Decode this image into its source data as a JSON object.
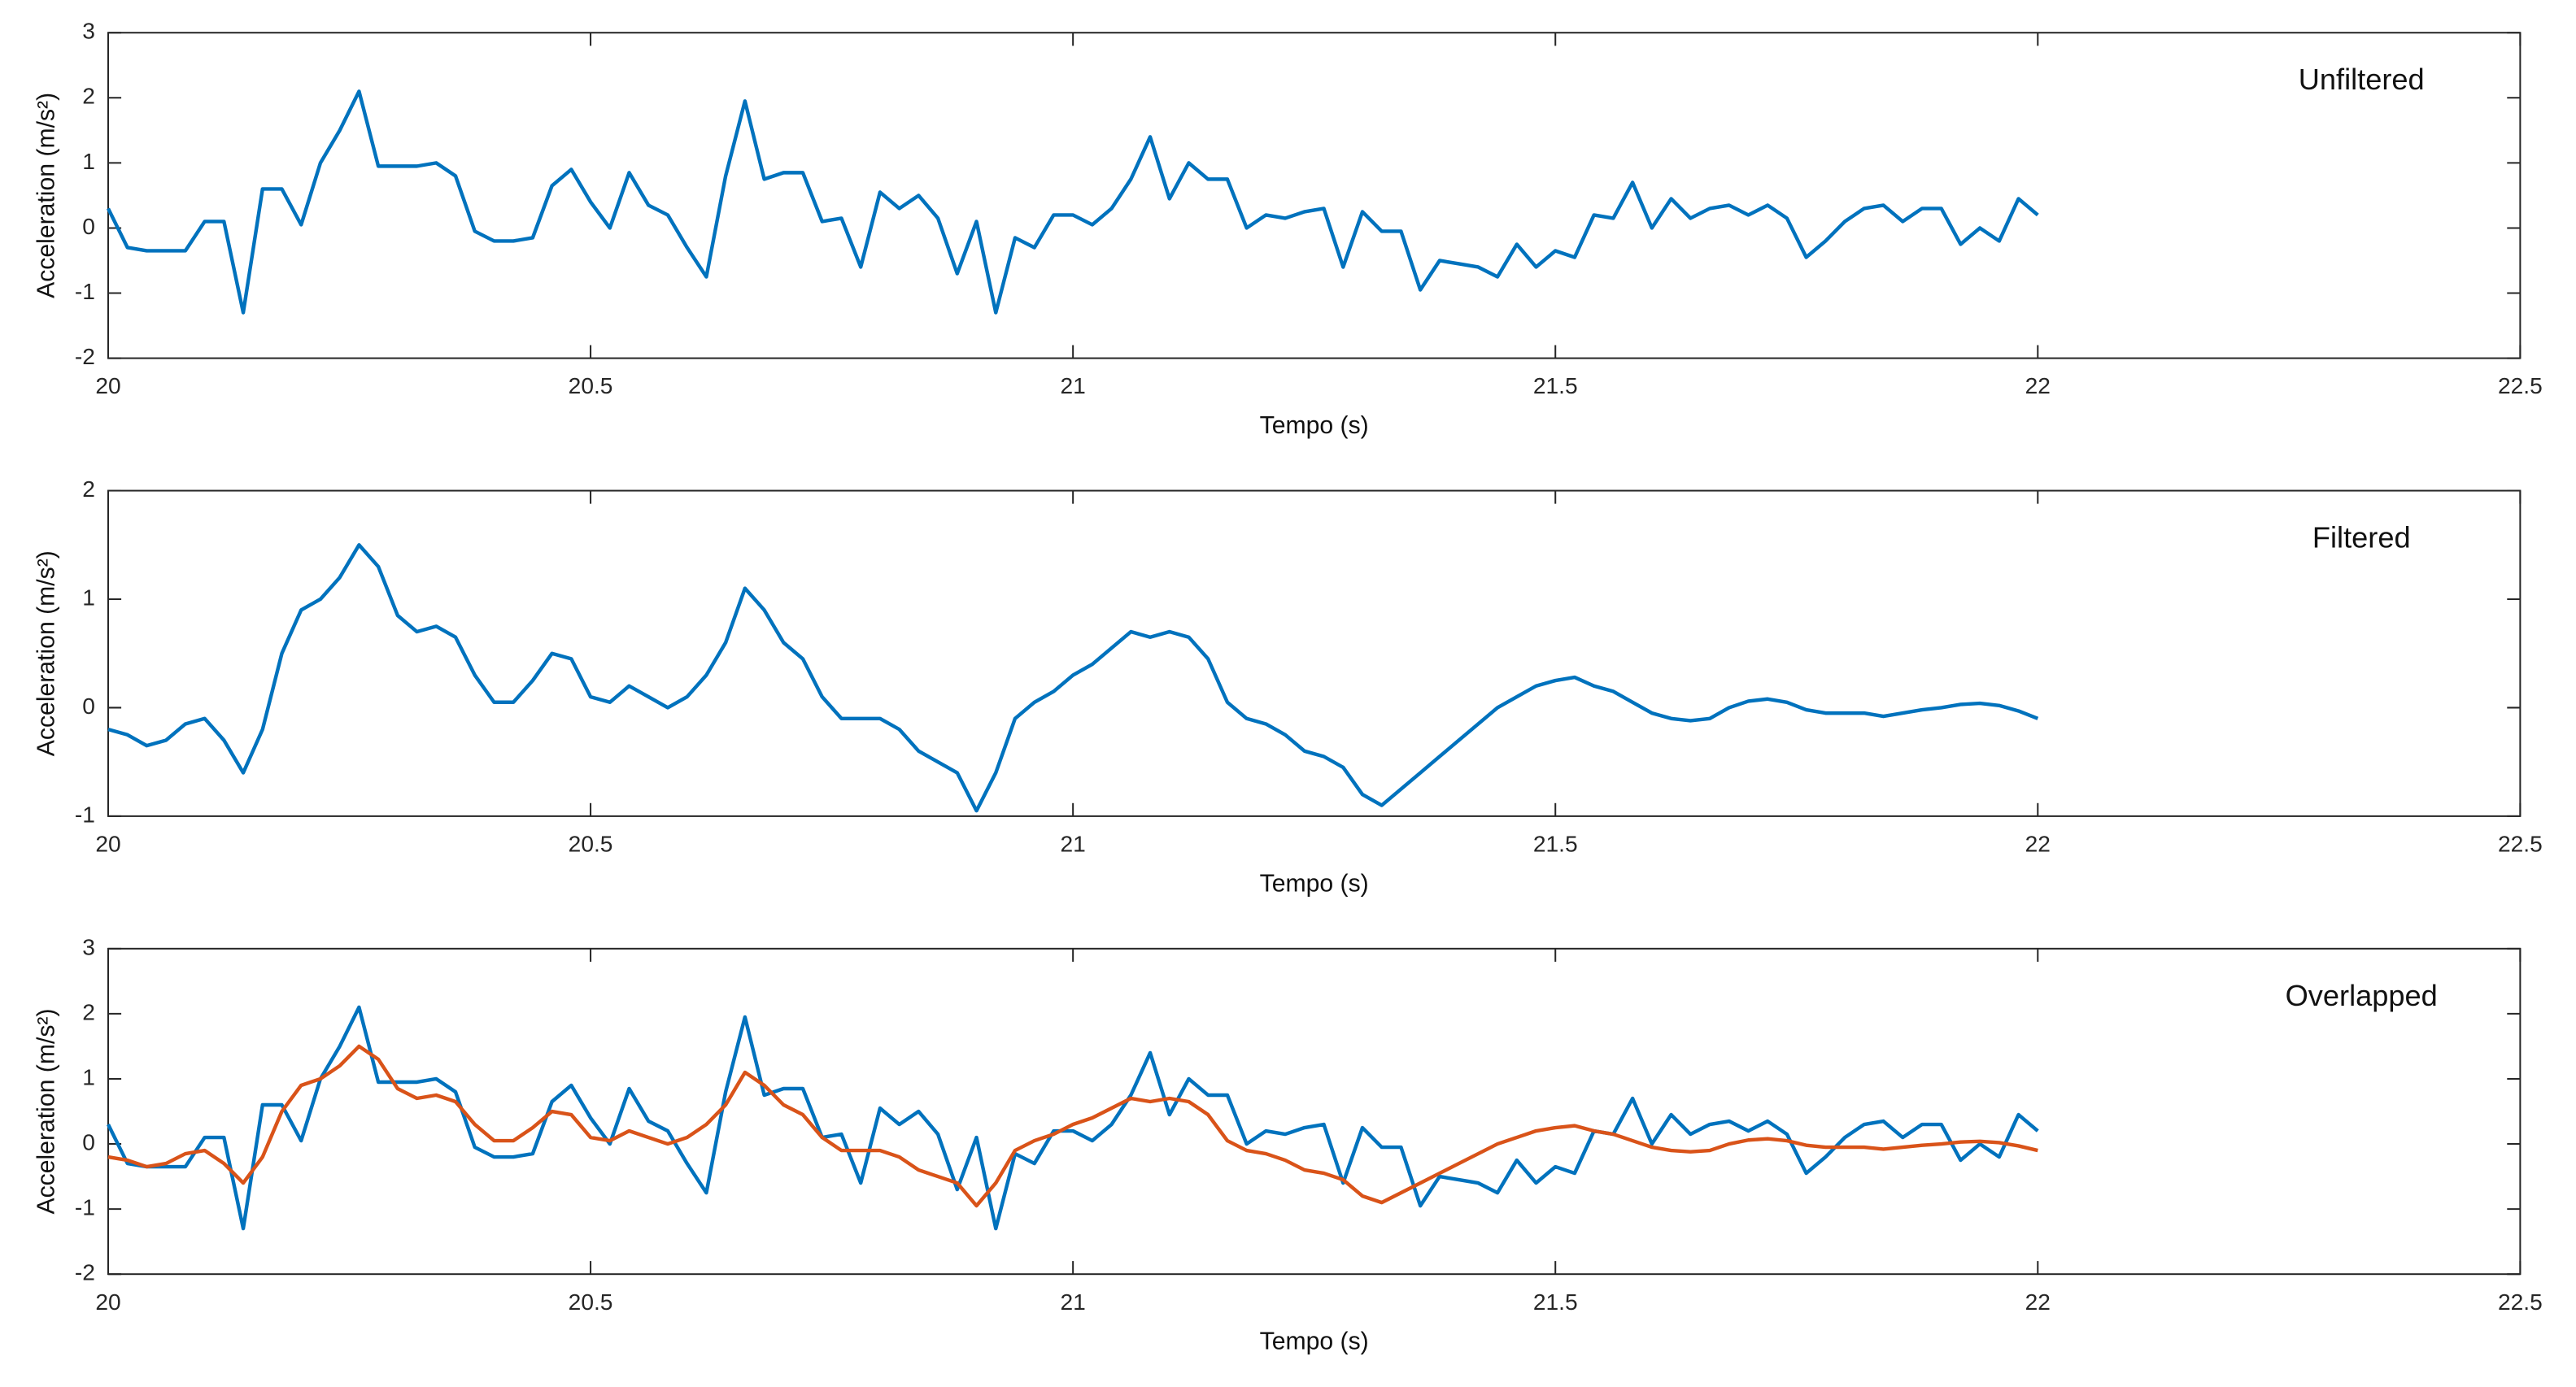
{
  "chart_data": [
    {
      "type": "line",
      "title": "Unfiltered",
      "xlabel": "Tempo (s)",
      "ylabel": "Acceleration (m/s²)",
      "xlim": [
        20,
        22.5
      ],
      "xticks": [
        20,
        20.5,
        21,
        21.5,
        22,
        22.5
      ],
      "ylim": [
        -2,
        3
      ],
      "yticks": [
        -2,
        -1,
        0,
        1,
        2,
        3
      ],
      "x": [
        20,
        20.02,
        20.04,
        20.06,
        20.08,
        20.1,
        20.12,
        20.14,
        20.16,
        20.18,
        20.2,
        20.22,
        20.24,
        20.26,
        20.28,
        20.3,
        20.32,
        20.34,
        20.36,
        20.38,
        20.4,
        20.42,
        20.44,
        20.46,
        20.48,
        20.5,
        20.52,
        20.54,
        20.56,
        20.58,
        20.6,
        20.62,
        20.64,
        20.66,
        20.68,
        20.7,
        20.72,
        20.74,
        20.76,
        20.78,
        20.8,
        20.82,
        20.84,
        20.86,
        20.88,
        20.9,
        20.92,
        20.94,
        20.96,
        20.98,
        21,
        21.02,
        21.04,
        21.06,
        21.08,
        21.1,
        21.12,
        21.14,
        21.16,
        21.18,
        21.2,
        21.22,
        21.24,
        21.26,
        21.28,
        21.3,
        21.32,
        21.34,
        21.36,
        21.38,
        21.4,
        21.42,
        21.44,
        21.46,
        21.48,
        21.5,
        21.52,
        21.54,
        21.56,
        21.58,
        21.6,
        21.62,
        21.64,
        21.66,
        21.68,
        21.7,
        21.72,
        21.74,
        21.76,
        21.78,
        21.8,
        21.82,
        21.84,
        21.86,
        21.88,
        21.9,
        21.92,
        21.94,
        21.96,
        21.98,
        22
      ],
      "series": [
        {
          "color": "#0072bd",
          "values": [
            0.3,
            -0.3,
            -0.35,
            -0.35,
            -0.35,
            0.1,
            0.1,
            -1.3,
            0.6,
            0.6,
            0.05,
            1.0,
            1.5,
            2.1,
            0.95,
            0.95,
            0.95,
            1.0,
            0.8,
            -0.05,
            -0.2,
            -0.2,
            -0.15,
            0.65,
            0.9,
            0.4,
            0.0,
            0.85,
            0.35,
            0.2,
            -0.3,
            -0.75,
            0.8,
            1.95,
            0.75,
            0.85,
            0.85,
            0.1,
            0.15,
            -0.6,
            0.55,
            0.3,
            0.5,
            0.15,
            -0.7,
            0.1,
            -1.3,
            -0.15,
            -0.3,
            0.2,
            0.2,
            0.05,
            0.3,
            0.75,
            1.4,
            0.45,
            1.0,
            0.75,
            0.75,
            0.0,
            0.2,
            0.15,
            0.25,
            0.3,
            -0.6,
            0.25,
            -0.05,
            -0.05,
            -0.95,
            -0.5,
            -0.55,
            -0.6,
            -0.75,
            -0.25,
            -0.6,
            -0.35,
            -0.45,
            0.2,
            0.15,
            0.7,
            0.0,
            0.45,
            0.15,
            0.3,
            0.35,
            0.2,
            0.35,
            0.15,
            -0.45,
            -0.2,
            0.1,
            0.3,
            0.35,
            0.1,
            0.3,
            0.3,
            -0.25,
            0.0,
            -0.2,
            0.45,
            0.2
          ]
        }
      ]
    },
    {
      "type": "line",
      "title": "Filtered",
      "xlabel": "Tempo (s)",
      "ylabel": "Acceleration (m/s²)",
      "xlim": [
        20,
        22.5
      ],
      "xticks": [
        20,
        20.5,
        21,
        21.5,
        22,
        22.5
      ],
      "ylim": [
        -1,
        2
      ],
      "yticks": [
        -1,
        0,
        1,
        2
      ],
      "x": [
        20,
        20.02,
        20.04,
        20.06,
        20.08,
        20.1,
        20.12,
        20.14,
        20.16,
        20.18,
        20.2,
        20.22,
        20.24,
        20.26,
        20.28,
        20.3,
        20.32,
        20.34,
        20.36,
        20.38,
        20.4,
        20.42,
        20.44,
        20.46,
        20.48,
        20.5,
        20.52,
        20.54,
        20.56,
        20.58,
        20.6,
        20.62,
        20.64,
        20.66,
        20.68,
        20.7,
        20.72,
        20.74,
        20.76,
        20.78,
        20.8,
        20.82,
        20.84,
        20.86,
        20.88,
        20.9,
        20.92,
        20.94,
        20.96,
        20.98,
        21,
        21.02,
        21.04,
        21.06,
        21.08,
        21.1,
        21.12,
        21.14,
        21.16,
        21.18,
        21.2,
        21.22,
        21.24,
        21.26,
        21.28,
        21.3,
        21.32,
        21.34,
        21.36,
        21.38,
        21.4,
        21.42,
        21.44,
        21.46,
        21.48,
        21.5,
        21.52,
        21.54,
        21.56,
        21.58,
        21.6,
        21.62,
        21.64,
        21.66,
        21.68,
        21.7,
        21.72,
        21.74,
        21.76,
        21.78,
        21.8,
        21.82,
        21.84,
        21.86,
        21.88,
        21.9,
        21.92,
        21.94,
        21.96,
        21.98,
        22
      ],
      "series": [
        {
          "color": "#0072bd",
          "values": [
            -0.2,
            -0.25,
            -0.35,
            -0.3,
            -0.15,
            -0.1,
            -0.3,
            -0.6,
            -0.2,
            0.5,
            0.9,
            1.0,
            1.2,
            1.5,
            1.3,
            0.85,
            0.7,
            0.75,
            0.65,
            0.3,
            0.05,
            0.05,
            0.25,
            0.5,
            0.45,
            0.1,
            0.05,
            0.2,
            0.1,
            0.0,
            0.1,
            0.3,
            0.6,
            1.1,
            0.9,
            0.6,
            0.45,
            0.1,
            -0.1,
            -0.1,
            -0.1,
            -0.2,
            -0.4,
            -0.5,
            -0.6,
            -0.95,
            -0.6,
            -0.1,
            0.05,
            0.15,
            0.3,
            0.4,
            0.55,
            0.7,
            0.65,
            0.7,
            0.65,
            0.45,
            0.05,
            -0.1,
            -0.15,
            -0.25,
            -0.4,
            -0.45,
            -0.55,
            -0.8,
            -0.9,
            -0.75,
            -0.6,
            -0.45,
            -0.3,
            -0.15,
            0.0,
            0.1,
            0.2,
            0.25,
            0.28,
            0.2,
            0.15,
            0.05,
            -0.05,
            -0.1,
            -0.12,
            -0.1,
            0.0,
            0.06,
            0.08,
            0.05,
            -0.02,
            -0.05,
            -0.05,
            -0.05,
            -0.08,
            -0.05,
            -0.02,
            0.0,
            0.03,
            0.04,
            0.02,
            -0.03,
            -0.1
          ]
        }
      ]
    },
    {
      "type": "line",
      "title": "Overlapped",
      "xlabel": "Tempo (s)",
      "ylabel": "Acceleration (m/s²)",
      "xlim": [
        20,
        22.5
      ],
      "xticks": [
        20,
        20.5,
        21,
        21.5,
        22,
        22.5
      ],
      "ylim": [
        -2,
        3
      ],
      "yticks": [
        -2,
        -1,
        0,
        1,
        2,
        3
      ],
      "x": [
        20,
        20.02,
        20.04,
        20.06,
        20.08,
        20.1,
        20.12,
        20.14,
        20.16,
        20.18,
        20.2,
        20.22,
        20.24,
        20.26,
        20.28,
        20.3,
        20.32,
        20.34,
        20.36,
        20.38,
        20.4,
        20.42,
        20.44,
        20.46,
        20.48,
        20.5,
        20.52,
        20.54,
        20.56,
        20.58,
        20.6,
        20.62,
        20.64,
        20.66,
        20.68,
        20.7,
        20.72,
        20.74,
        20.76,
        20.78,
        20.8,
        20.82,
        20.84,
        20.86,
        20.88,
        20.9,
        20.92,
        20.94,
        20.96,
        20.98,
        21,
        21.02,
        21.04,
        21.06,
        21.08,
        21.1,
        21.12,
        21.14,
        21.16,
        21.18,
        21.2,
        21.22,
        21.24,
        21.26,
        21.28,
        21.3,
        21.32,
        21.34,
        21.36,
        21.38,
        21.4,
        21.42,
        21.44,
        21.46,
        21.48,
        21.5,
        21.52,
        21.54,
        21.56,
        21.58,
        21.6,
        21.62,
        21.64,
        21.66,
        21.68,
        21.7,
        21.72,
        21.74,
        21.76,
        21.78,
        21.8,
        21.82,
        21.84,
        21.86,
        21.88,
        21.9,
        21.92,
        21.94,
        21.96,
        21.98,
        22
      ],
      "series": [
        {
          "color": "#0072bd",
          "values": [
            0.3,
            -0.3,
            -0.35,
            -0.35,
            -0.35,
            0.1,
            0.1,
            -1.3,
            0.6,
            0.6,
            0.05,
            1.0,
            1.5,
            2.1,
            0.95,
            0.95,
            0.95,
            1.0,
            0.8,
            -0.05,
            -0.2,
            -0.2,
            -0.15,
            0.65,
            0.9,
            0.4,
            0.0,
            0.85,
            0.35,
            0.2,
            -0.3,
            -0.75,
            0.8,
            1.95,
            0.75,
            0.85,
            0.85,
            0.1,
            0.15,
            -0.6,
            0.55,
            0.3,
            0.5,
            0.15,
            -0.7,
            0.1,
            -1.3,
            -0.15,
            -0.3,
            0.2,
            0.2,
            0.05,
            0.3,
            0.75,
            1.4,
            0.45,
            1.0,
            0.75,
            0.75,
            0.0,
            0.2,
            0.15,
            0.25,
            0.3,
            -0.6,
            0.25,
            -0.05,
            -0.05,
            -0.95,
            -0.5,
            -0.55,
            -0.6,
            -0.75,
            -0.25,
            -0.6,
            -0.35,
            -0.45,
            0.2,
            0.15,
            0.7,
            0.0,
            0.45,
            0.15,
            0.3,
            0.35,
            0.2,
            0.35,
            0.15,
            -0.45,
            -0.2,
            0.1,
            0.3,
            0.35,
            0.1,
            0.3,
            0.3,
            -0.25,
            0.0,
            -0.2,
            0.45,
            0.2
          ]
        },
        {
          "color": "#d95319",
          "values": [
            -0.2,
            -0.25,
            -0.35,
            -0.3,
            -0.15,
            -0.1,
            -0.3,
            -0.6,
            -0.2,
            0.5,
            0.9,
            1.0,
            1.2,
            1.5,
            1.3,
            0.85,
            0.7,
            0.75,
            0.65,
            0.3,
            0.05,
            0.05,
            0.25,
            0.5,
            0.45,
            0.1,
            0.05,
            0.2,
            0.1,
            0.0,
            0.1,
            0.3,
            0.6,
            1.1,
            0.9,
            0.6,
            0.45,
            0.1,
            -0.1,
            -0.1,
            -0.1,
            -0.2,
            -0.4,
            -0.5,
            -0.6,
            -0.95,
            -0.6,
            -0.1,
            0.05,
            0.15,
            0.3,
            0.4,
            0.55,
            0.7,
            0.65,
            0.7,
            0.65,
            0.45,
            0.05,
            -0.1,
            -0.15,
            -0.25,
            -0.4,
            -0.45,
            -0.55,
            -0.8,
            -0.9,
            -0.75,
            -0.6,
            -0.45,
            -0.3,
            -0.15,
            0.0,
            0.1,
            0.2,
            0.25,
            0.28,
            0.2,
            0.15,
            0.05,
            -0.05,
            -0.1,
            -0.12,
            -0.1,
            0.0,
            0.06,
            0.08,
            0.05,
            -0.02,
            -0.05,
            -0.05,
            -0.05,
            -0.08,
            -0.05,
            -0.02,
            0.0,
            0.03,
            0.04,
            0.02,
            -0.03,
            -0.1
          ]
        }
      ]
    }
  ]
}
